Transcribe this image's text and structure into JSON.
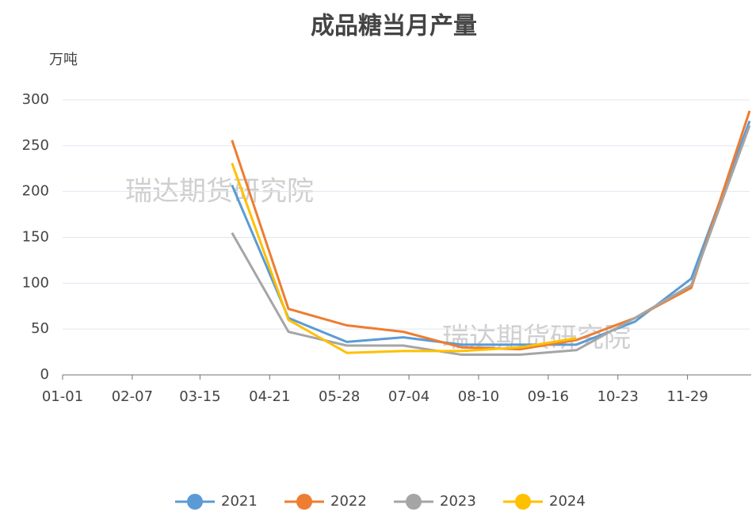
{
  "chart_data": {
    "type": "line",
    "title": "成品糖当月产量",
    "y_unit": "万吨",
    "watermarks": [
      "瑞达期货研究院",
      "瑞达期货研究院"
    ],
    "x": [
      90,
      120,
      151,
      181,
      212,
      243,
      273,
      304,
      334,
      365
    ],
    "xlim": [
      0,
      365
    ],
    "xticks": [
      {
        "value": 0,
        "label": "01-01"
      },
      {
        "value": 37,
        "label": "02-07"
      },
      {
        "value": 73,
        "label": "03-15"
      },
      {
        "value": 110,
        "label": "04-21"
      },
      {
        "value": 147,
        "label": "05-28"
      },
      {
        "value": 184,
        "label": "07-04"
      },
      {
        "value": 221,
        "label": "08-10"
      },
      {
        "value": 258,
        "label": "09-16"
      },
      {
        "value": 295,
        "label": "10-23"
      },
      {
        "value": 332,
        "label": "11-29"
      }
    ],
    "ylim": [
      0,
      300
    ],
    "yticks": [
      0,
      50,
      100,
      150,
      200,
      250,
      300
    ],
    "grid": true,
    "series": [
      {
        "name": "2021",
        "color": "#5b9bd5",
        "values": [
          207,
          62,
          36,
          41,
          33,
          33,
          33,
          58,
          105,
          277
        ]
      },
      {
        "name": "2022",
        "color": "#ed7d31",
        "values": [
          256,
          72,
          54,
          47,
          30,
          28,
          38,
          62,
          95,
          288
        ]
      },
      {
        "name": "2023",
        "color": "#a5a5a5",
        "values": [
          155,
          47,
          32,
          32,
          22,
          22,
          27,
          62,
          98,
          272
        ]
      },
      {
        "name": "2024",
        "color": "#ffc000",
        "values": [
          231,
          60,
          24,
          26,
          26,
          30,
          40,
          null,
          null,
          null
        ]
      }
    ]
  }
}
